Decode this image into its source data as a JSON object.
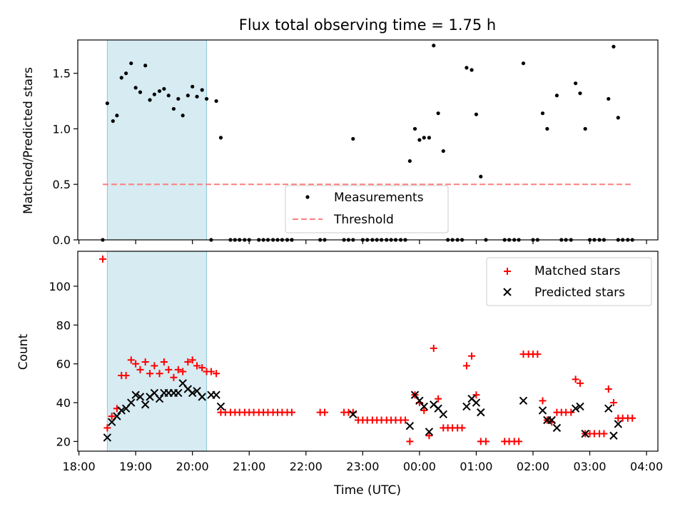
{
  "chart_data": [
    {
      "type": "scatter",
      "title": "Flux total observing time = 1.75 h",
      "xlabel": "",
      "ylabel": "Matched/Predicted stars",
      "x_unit": "hours since 18:00 UTC",
      "xlim": [
        17.98,
        28.2
      ],
      "ylim": [
        0,
        1.8
      ],
      "yticks": [
        0.0,
        0.5,
        1.0,
        1.5
      ],
      "ytick_labels": [
        "0.0",
        "0.5",
        "1.0",
        "1.5"
      ],
      "xticks": [
        18,
        19,
        20,
        21,
        22,
        23,
        24,
        25,
        26,
        27,
        28
      ],
      "highlight_span": [
        18.5,
        20.25
      ],
      "threshold": {
        "name": "Threshold",
        "value": 0.5,
        "x_range": [
          18.42,
          27.72
        ],
        "color": "#ff7f7f"
      },
      "legend": {
        "placement": "lower-center",
        "entries": [
          "Measurements",
          "Threshold"
        ]
      },
      "series": [
        {
          "name": "Measurements",
          "color": "#000000",
          "x": [
            18.42,
            18.5,
            18.6,
            18.67,
            18.75,
            18.83,
            18.92,
            19.0,
            19.08,
            19.17,
            19.25,
            19.33,
            19.42,
            19.5,
            19.58,
            19.67,
            19.75,
            19.83,
            19.92,
            20.0,
            20.08,
            20.17,
            20.25,
            20.42,
            20.5,
            21.75,
            22.83,
            23.83,
            23.92,
            24.0,
            24.08,
            24.17,
            24.25,
            24.33,
            24.42,
            24.83,
            24.92,
            25.0,
            25.08,
            25.83,
            26.17,
            26.25,
            26.42,
            26.75,
            26.83,
            26.92,
            27.33,
            27.42,
            27.5
          ],
          "y": [
            0.0,
            1.23,
            1.07,
            1.12,
            1.46,
            1.5,
            1.59,
            1.37,
            1.33,
            1.57,
            1.26,
            1.31,
            1.34,
            1.36,
            1.3,
            1.18,
            1.27,
            1.12,
            1.3,
            1.38,
            1.29,
            1.35,
            1.27,
            1.25,
            0.92,
            0.0,
            0.91,
            0.71,
            1.0,
            0.9,
            0.92,
            0.92,
            1.75,
            1.14,
            0.8,
            1.55,
            1.53,
            1.13,
            0.57,
            1.59,
            1.14,
            1.0,
            1.3,
            1.41,
            1.32,
            1.0,
            1.27,
            1.74,
            1.1
          ]
        },
        {
          "name": "Measurements (zero)",
          "color": "#000000",
          "x": [
            20.33,
            20.67,
            20.75,
            20.83,
            20.92,
            21.0,
            21.17,
            21.25,
            21.33,
            21.42,
            21.5,
            21.58,
            21.67,
            21.75,
            22.25,
            22.33,
            22.67,
            22.75,
            22.83,
            23.0,
            23.08,
            23.17,
            23.25,
            23.33,
            23.42,
            23.5,
            23.58,
            23.67,
            23.75,
            24.5,
            24.58,
            24.67,
            24.75,
            25.17,
            25.5,
            25.58,
            25.67,
            25.75,
            26.0,
            26.08,
            26.5,
            26.58,
            26.67,
            27.0,
            27.08,
            27.17,
            27.25,
            27.5,
            27.58,
            27.67,
            27.75
          ],
          "y": [
            0,
            0,
            0,
            0,
            0,
            0,
            0,
            0,
            0,
            0,
            0,
            0,
            0,
            0,
            0,
            0,
            0,
            0,
            0,
            0,
            0,
            0,
            0,
            0,
            0,
            0,
            0,
            0,
            0,
            0,
            0,
            0,
            0,
            0,
            0,
            0,
            0,
            0,
            0,
            0,
            0,
            0,
            0,
            0,
            0,
            0,
            0,
            0,
            0,
            0,
            0
          ]
        }
      ]
    },
    {
      "type": "scatter",
      "title": "",
      "xlabel": "Time (UTC)",
      "ylabel": "Count",
      "x_unit": "hours since 18:00 UTC",
      "xlim": [
        17.98,
        28.2
      ],
      "ylim": [
        15,
        118
      ],
      "yticks": [
        20,
        40,
        60,
        80,
        100
      ],
      "ytick_labels": [
        "20",
        "40",
        "60",
        "80",
        "100"
      ],
      "xticks": [
        18,
        19,
        20,
        21,
        22,
        23,
        24,
        25,
        26,
        27,
        28
      ],
      "xtick_labels": [
        "18:00",
        "19:00",
        "20:00",
        "21:00",
        "22:00",
        "23:00",
        "00:00",
        "01:00",
        "02:00",
        "03:00",
        "04:00"
      ],
      "highlight_span": [
        18.5,
        20.25
      ],
      "legend": {
        "placement": "top-right",
        "entries": [
          "Matched stars",
          "Predicted stars"
        ]
      },
      "series": [
        {
          "name": "Matched stars",
          "color": "#ff0000",
          "marker": "plus",
          "x": [
            18.42,
            18.5,
            18.58,
            18.67,
            18.75,
            18.83,
            18.92,
            19.0,
            19.08,
            19.17,
            19.25,
            19.33,
            19.42,
            19.5,
            19.58,
            19.67,
            19.75,
            19.83,
            19.92,
            20.0,
            20.08,
            20.17,
            20.25,
            20.33,
            20.42,
            20.5,
            20.58,
            20.67,
            20.75,
            20.83,
            20.92,
            21.0,
            21.08,
            21.17,
            21.25,
            21.33,
            21.42,
            21.5,
            21.58,
            21.67,
            21.75,
            22.25,
            22.33,
            22.67,
            22.75,
            22.83,
            22.92,
            23.0,
            23.08,
            23.17,
            23.25,
            23.33,
            23.42,
            23.5,
            23.58,
            23.67,
            23.75,
            23.83,
            23.92,
            24.0,
            24.08,
            24.17,
            24.25,
            24.33,
            24.42,
            24.5,
            24.58,
            24.67,
            24.75,
            24.83,
            24.92,
            25.0,
            25.08,
            25.17,
            25.5,
            25.58,
            25.67,
            25.75,
            25.83,
            25.92,
            26.0,
            26.08,
            26.17,
            26.25,
            26.33,
            26.42,
            26.5,
            26.58,
            26.67,
            26.75,
            26.83,
            26.92,
            27.0,
            27.08,
            27.17,
            27.25,
            27.33,
            27.42,
            27.5,
            27.58,
            27.67,
            27.75
          ],
          "y": [
            114,
            27,
            33,
            37,
            54,
            54,
            62,
            60,
            57,
            61,
            55,
            59,
            55,
            61,
            57,
            53,
            57,
            56,
            61,
            62,
            59,
            58,
            56,
            56,
            55,
            35,
            35,
            35,
            35,
            35,
            35,
            35,
            35,
            35,
            35,
            35,
            35,
            35,
            35,
            35,
            35,
            35,
            35,
            35,
            35,
            35,
            31,
            31,
            31,
            31,
            31,
            31,
            31,
            31,
            31,
            31,
            31,
            20,
            44,
            40,
            36,
            23,
            68,
            42,
            27,
            27,
            27,
            27,
            27,
            59,
            64,
            44,
            20,
            20,
            20,
            20,
            20,
            20,
            65,
            65,
            65,
            65,
            41,
            31,
            30,
            35,
            35,
            35,
            35,
            52,
            50,
            24,
            24,
            24,
            24,
            24,
            47,
            40,
            32,
            32,
            32,
            32
          ]
        },
        {
          "name": "Predicted stars",
          "color": "#000000",
          "marker": "x",
          "x": [
            18.5,
            18.58,
            18.67,
            18.75,
            18.83,
            18.92,
            19.0,
            19.08,
            19.17,
            19.25,
            19.33,
            19.42,
            19.5,
            19.58,
            19.67,
            19.75,
            19.83,
            19.92,
            20.0,
            20.08,
            20.17,
            20.33,
            20.42,
            20.5,
            22.83,
            23.83,
            23.92,
            24.0,
            24.08,
            24.17,
            24.25,
            24.33,
            24.42,
            24.83,
            24.92,
            25.0,
            25.08,
            25.83,
            26.17,
            26.25,
            26.33,
            26.42,
            26.75,
            26.83,
            26.92,
            27.33,
            27.42,
            27.5
          ],
          "y": [
            22,
            30,
            33,
            36,
            37,
            40,
            44,
            43,
            39,
            43,
            45,
            42,
            45,
            45,
            45,
            45,
            50,
            47,
            45,
            46,
            43,
            44,
            44,
            38,
            34,
            28,
            44,
            41,
            38,
            25,
            39,
            37,
            34,
            38,
            42,
            40,
            35,
            41,
            36,
            31,
            31,
            27,
            37,
            38,
            24,
            37,
            23,
            29
          ]
        }
      ]
    }
  ]
}
